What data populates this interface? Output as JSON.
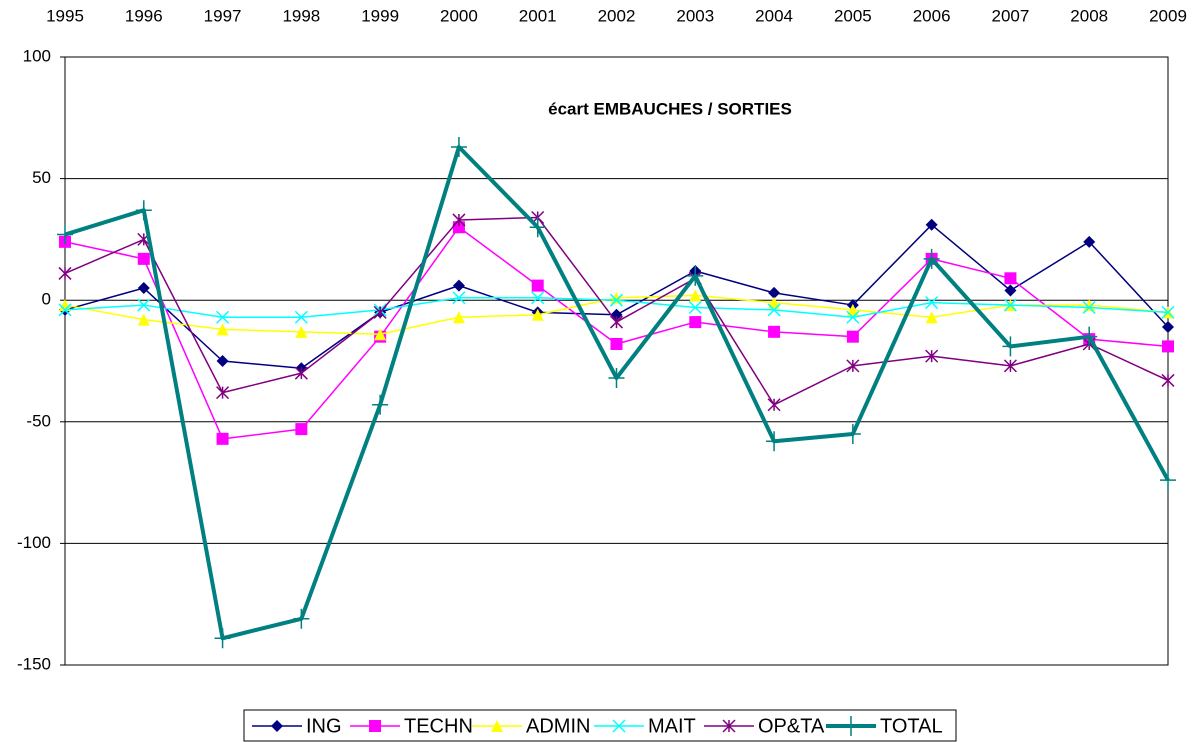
{
  "chart_data": {
    "type": "line",
    "title": "écart EMBAUCHES / SORTIES",
    "x": [
      "1995",
      "1996",
      "1997",
      "1998",
      "1999",
      "2000",
      "2001",
      "2002",
      "2003",
      "2004",
      "2005",
      "2006",
      "2007",
      "2008",
      "2009"
    ],
    "ylim": [
      -150,
      100
    ],
    "yticks": [
      -150,
      -100,
      -50,
      0,
      50,
      100
    ],
    "grid": true,
    "legend": "bottom",
    "series": [
      {
        "name": "ING",
        "color": "#000080",
        "marker": "diamond",
        "linewidth": 1.5,
        "values": [
          -4,
          5,
          -25,
          -28,
          -5,
          6,
          -5,
          -6,
          12,
          3,
          -2,
          31,
          4,
          24,
          -11
        ]
      },
      {
        "name": "TECHN",
        "color": "#ff00ff",
        "marker": "square",
        "linewidth": 1.5,
        "values": [
          24,
          17,
          -57,
          -53,
          -15,
          30,
          6,
          -18,
          -9,
          -13,
          -15,
          17,
          9,
          -16,
          -19
        ]
      },
      {
        "name": "ADMIN",
        "color": "#ffff00",
        "marker": "triangle",
        "linewidth": 1.5,
        "values": [
          -2,
          -8,
          -12,
          -13,
          -14,
          -7,
          -6,
          1,
          2,
          -1,
          -4,
          -7,
          -2,
          -2,
          -5
        ]
      },
      {
        "name": "MAIT",
        "color": "#00ffff",
        "marker": "x",
        "linewidth": 1.5,
        "values": [
          -4,
          -2,
          -7,
          -7,
          -4,
          1,
          1,
          0,
          -3,
          -4,
          -7,
          -1,
          -2,
          -3,
          -5
        ]
      },
      {
        "name": "OP&TA",
        "color": "#800080",
        "marker": "star",
        "linewidth": 1.5,
        "values": [
          11,
          25,
          -38,
          -30,
          -5,
          33,
          34,
          -9,
          9,
          -43,
          -27,
          -23,
          -27,
          -18,
          -33
        ]
      },
      {
        "name": "TOTAL",
        "color": "#008080",
        "marker": "plus",
        "linewidth": 4,
        "values": [
          27,
          37,
          -139,
          -131,
          -43,
          63,
          30,
          -32,
          10,
          -58,
          -55,
          17,
          -19,
          -15,
          -74
        ]
      }
    ]
  }
}
